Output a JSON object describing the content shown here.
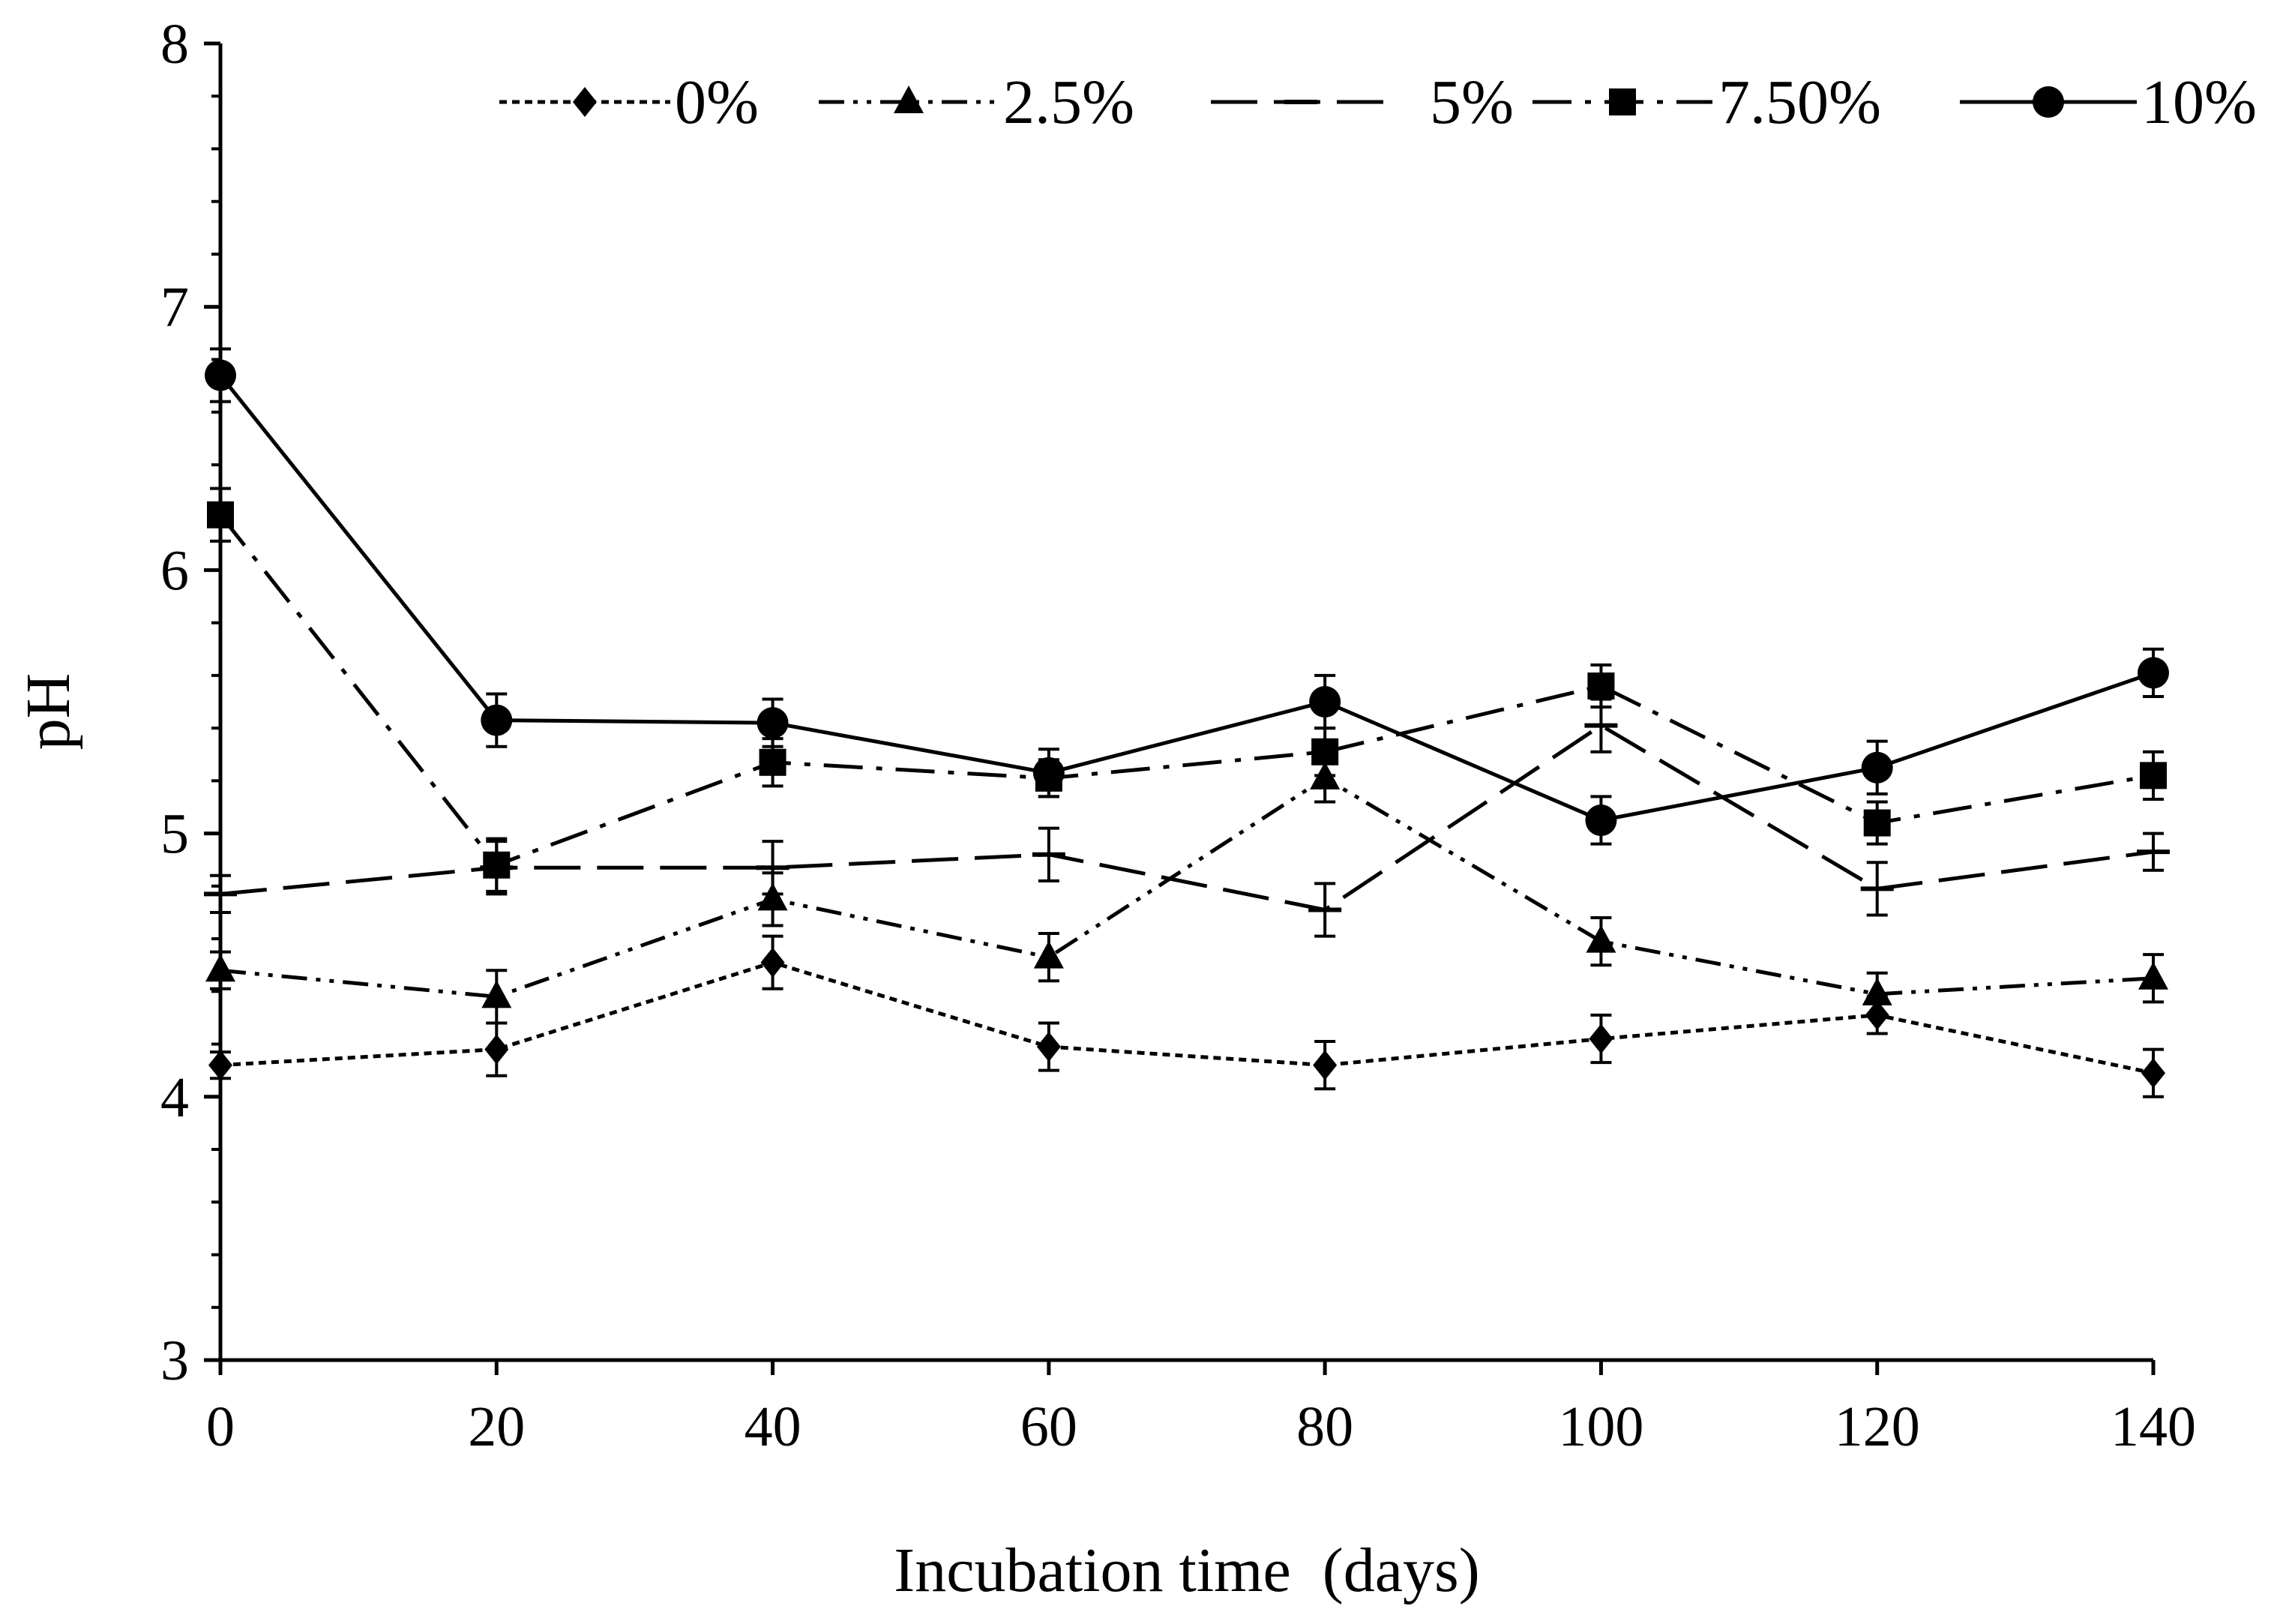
{
  "chart_data": {
    "type": "line",
    "title": "",
    "xlabel": "Incubation time  (days)",
    "ylabel": "pH",
    "xlim": [
      0,
      140
    ],
    "ylim": [
      3,
      8
    ],
    "x_ticks": [
      0,
      20,
      40,
      60,
      80,
      100,
      120,
      140
    ],
    "y_ticks": [
      3,
      4,
      5,
      6,
      7,
      8
    ],
    "x": [
      0,
      20,
      40,
      60,
      80,
      100,
      120,
      140
    ],
    "legend_position": "top",
    "grid": false,
    "series": [
      {
        "name": "0%",
        "marker": "diamond",
        "line_style": "dotted",
        "values": [
          4.12,
          4.18,
          4.51,
          4.19,
          4.12,
          4.22,
          4.31,
          4.09
        ],
        "errors": [
          0.05,
          0.1,
          0.1,
          0.09,
          0.09,
          0.09,
          0.07,
          0.09
        ]
      },
      {
        "name": "2.5%",
        "marker": "triangle",
        "line_style": "dash-dot-dot",
        "values": [
          4.48,
          4.38,
          4.75,
          4.53,
          5.21,
          4.59,
          4.39,
          4.45
        ],
        "errors": [
          0.07,
          0.1,
          0.1,
          0.09,
          0.09,
          0.09,
          0.08,
          0.09
        ]
      },
      {
        "name": "5%",
        "marker": "dash",
        "line_style": "long-dash",
        "values": [
          4.77,
          4.87,
          4.87,
          4.92,
          4.71,
          5.41,
          4.79,
          4.93
        ],
        "errors": [
          0.07,
          0.1,
          0.1,
          0.1,
          0.1,
          0.1,
          0.1,
          0.07
        ]
      },
      {
        "name": "7.50%",
        "marker": "square",
        "line_style": "dash-dot",
        "values": [
          6.21,
          4.88,
          5.27,
          5.21,
          5.31,
          5.56,
          5.04,
          5.22
        ],
        "errors": [
          0.1,
          0.1,
          0.09,
          0.07,
          0.09,
          0.08,
          0.08,
          0.09
        ]
      },
      {
        "name": "10%",
        "marker": "circle",
        "line_style": "solid",
        "values": [
          6.74,
          5.43,
          5.42,
          5.23,
          5.5,
          5.05,
          5.25,
          5.61
        ],
        "errors": [
          0.1,
          0.1,
          0.09,
          0.09,
          0.1,
          0.09,
          0.1,
          0.09
        ]
      }
    ]
  }
}
